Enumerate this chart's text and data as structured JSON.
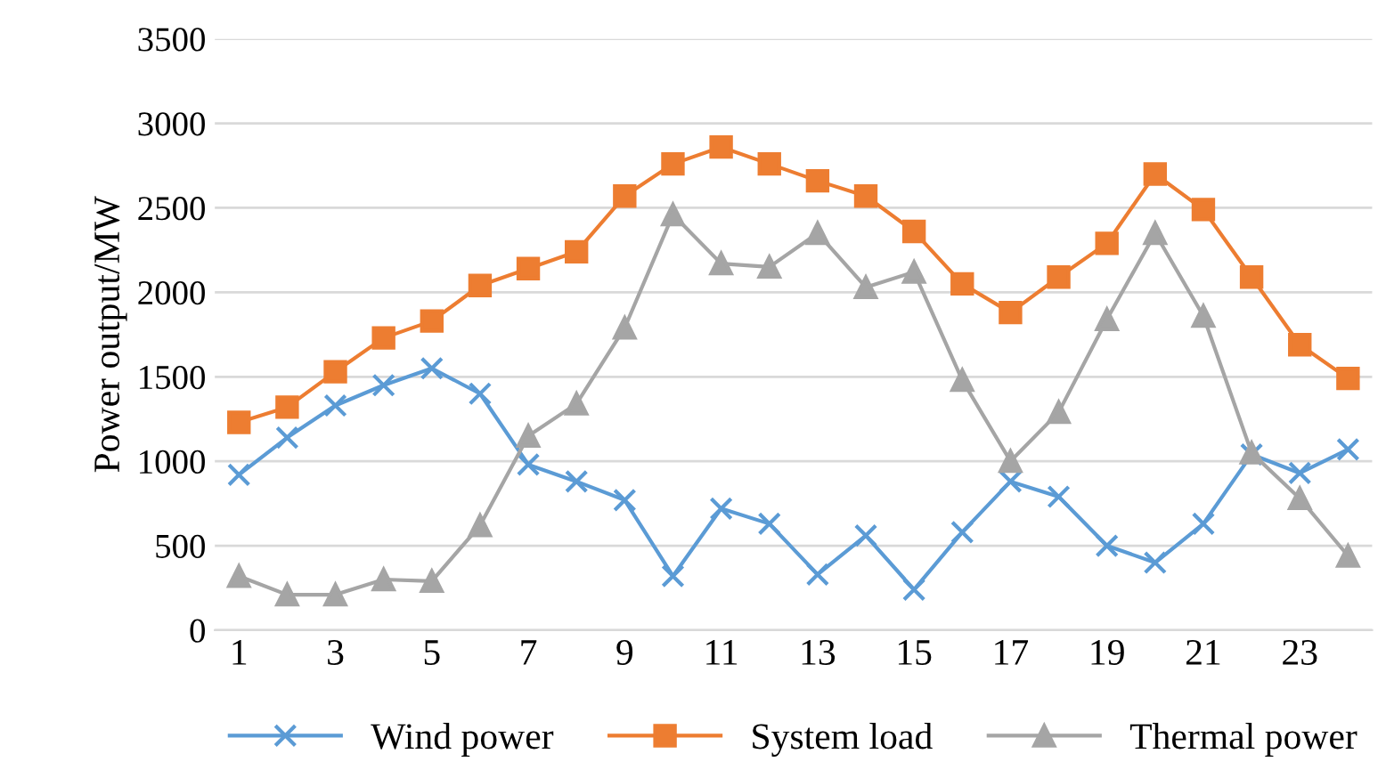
{
  "chart_data": {
    "type": "line",
    "ylabel": "Power output/MW",
    "categories": [
      "1",
      null,
      "3",
      null,
      "5",
      null,
      "7",
      null,
      "9",
      null,
      "11",
      null,
      "13",
      null,
      "15",
      null,
      "17",
      null,
      "19",
      null,
      "21",
      null,
      "23",
      null
    ],
    "series": [
      {
        "name": "Wind power",
        "color": "#5b9bd5",
        "marker": "cross",
        "values": [
          920,
          1140,
          1330,
          1450,
          1550,
          1400,
          980,
          880,
          770,
          320,
          720,
          630,
          330,
          560,
          240,
          580,
          880,
          790,
          500,
          400,
          630,
          1040,
          930,
          1070
        ]
      },
      {
        "name": "System load",
        "color": "#ed7d31",
        "marker": "square",
        "values": [
          1230,
          1320,
          1530,
          1730,
          1830,
          2040,
          2140,
          2240,
          2570,
          2760,
          2860,
          2760,
          2660,
          2570,
          2360,
          2050,
          1880,
          2090,
          2290,
          2700,
          2490,
          2090,
          1690,
          1490
        ]
      },
      {
        "name": "Thermal power",
        "color": "#a5a5a5",
        "marker": "triangle",
        "values": [
          320,
          210,
          210,
          300,
          290,
          620,
          1150,
          1340,
          1790,
          2460,
          2170,
          2150,
          2350,
          2030,
          2120,
          1480,
          1000,
          1290,
          1840,
          2350,
          1860,
          1050,
          780,
          440
        ]
      }
    ],
    "ylim": [
      0,
      3500
    ],
    "yticks": [
      0,
      500,
      1000,
      1500,
      2000,
      2500,
      3000,
      3500
    ],
    "grid": "y",
    "legend": "bottom",
    "line_style": "solid"
  }
}
